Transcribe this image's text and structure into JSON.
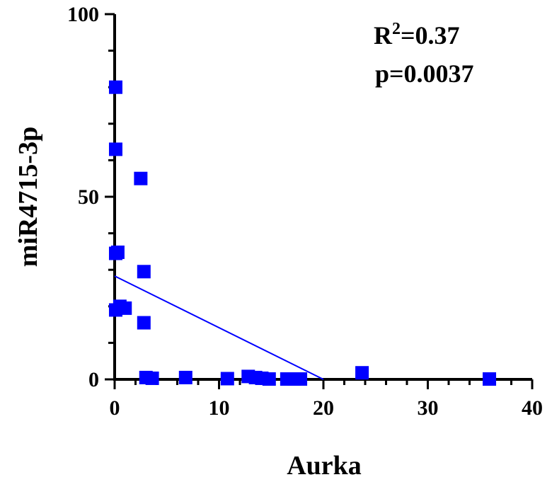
{
  "chart_data": {
    "type": "scatter",
    "xlabel": "Aurka",
    "ylabel": "miR4715-3p",
    "xlim": [
      0,
      40
    ],
    "ylim": [
      0,
      100
    ],
    "x_ticks": [
      "0",
      "10",
      "20",
      "30",
      "40"
    ],
    "y_ticks": [
      "0",
      "50",
      "100"
    ],
    "marker_color": "#0000ff",
    "marker_shape": "square",
    "points": [
      {
        "x": 0.1,
        "y": 80
      },
      {
        "x": 0.1,
        "y": 63
      },
      {
        "x": 2.5,
        "y": 55
      },
      {
        "x": 0.1,
        "y": 34.5
      },
      {
        "x": 0.3,
        "y": 34.8
      },
      {
        "x": 2.8,
        "y": 29.5
      },
      {
        "x": 0.1,
        "y": 19
      },
      {
        "x": 0.5,
        "y": 20
      },
      {
        "x": 1.0,
        "y": 19.5
      },
      {
        "x": 2.8,
        "y": 15.5
      },
      {
        "x": 3.0,
        "y": 0.5
      },
      {
        "x": 3.6,
        "y": 0.3
      },
      {
        "x": 6.8,
        "y": 0.5
      },
      {
        "x": 10.8,
        "y": 0.2
      },
      {
        "x": 12.8,
        "y": 0.8
      },
      {
        "x": 13.5,
        "y": 0.5
      },
      {
        "x": 14.1,
        "y": 0.3
      },
      {
        "x": 14.8,
        "y": 0.1
      },
      {
        "x": 16.5,
        "y": 0.1
      },
      {
        "x": 17.2,
        "y": 0.1
      },
      {
        "x": 17.8,
        "y": 0.1
      },
      {
        "x": 23.7,
        "y": 1.8
      },
      {
        "x": 35.9,
        "y": 0.1
      }
    ],
    "regression": {
      "x": [
        0,
        20
      ],
      "y": [
        28.3,
        0
      ],
      "color": "#0000ff"
    },
    "stats": {
      "r2_base": "R",
      "r2_exp": "2",
      "r2_value": "=0.37",
      "p": "p=0.0037"
    }
  }
}
